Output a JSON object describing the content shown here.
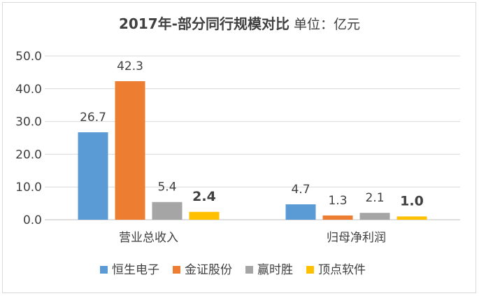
{
  "chart_data": {
    "type": "bar",
    "title": "2017年-部分同行规模对比",
    "subtitle": "单位：亿元",
    "categories": [
      "营业总收入",
      "归母净利润"
    ],
    "series": [
      {
        "name": "恒生电子",
        "values": [
          26.7,
          4.7
        ],
        "labels": [
          "26.7",
          "4.7"
        ],
        "color": "#5b9bd5",
        "bold": false
      },
      {
        "name": "金证股份",
        "values": [
          42.3,
          1.3
        ],
        "labels": [
          "42.3",
          "1.3"
        ],
        "color": "#ed7d31",
        "bold": false
      },
      {
        "name": "赢时胜",
        "values": [
          5.4,
          2.1
        ],
        "labels": [
          "5.4",
          "2.1"
        ],
        "color": "#a5a5a5",
        "bold": false
      },
      {
        "name": "顶点软件",
        "values": [
          2.4,
          1.0
        ],
        "labels": [
          "2.4",
          "1.0"
        ],
        "color": "#ffc000",
        "bold": true
      }
    ],
    "yticks": [
      "0.0",
      "10.0",
      "20.0",
      "30.0",
      "40.0",
      "50.0"
    ],
    "ylim": [
      0,
      50
    ],
    "grid": true,
    "legend": "bottom"
  }
}
